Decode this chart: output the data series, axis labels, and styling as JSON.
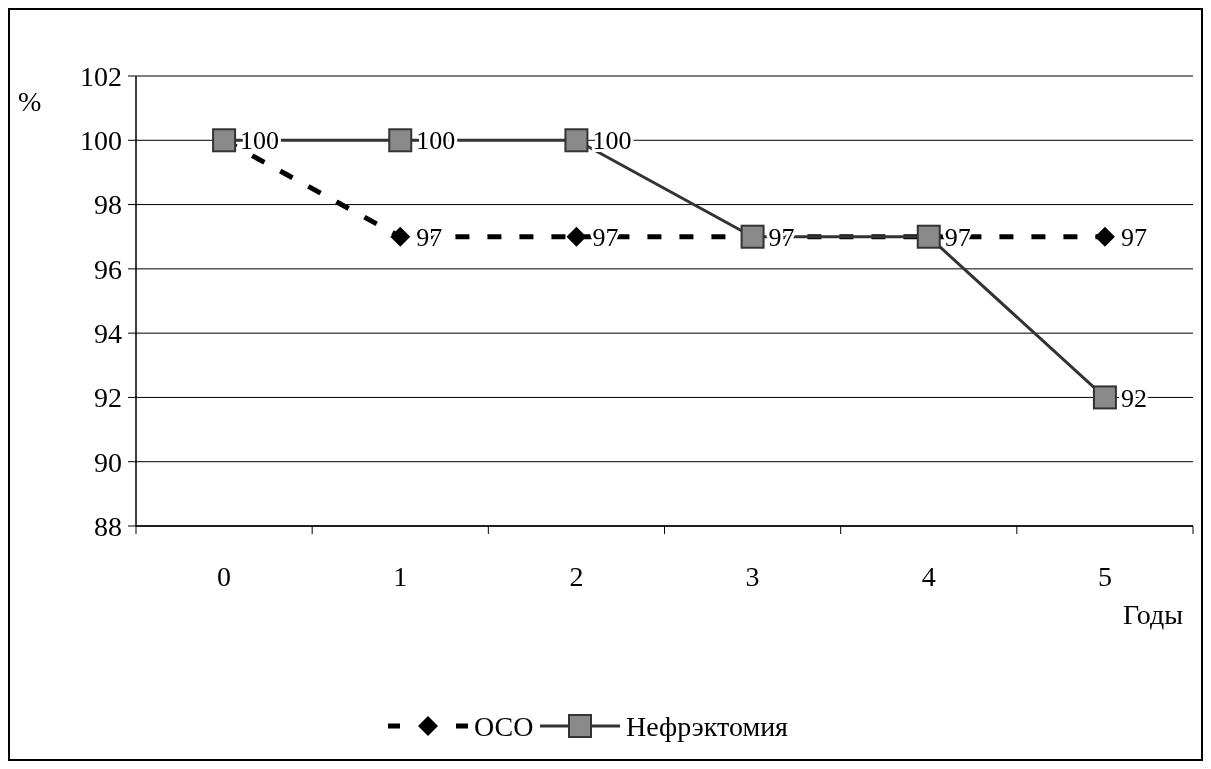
{
  "chart_data": {
    "type": "line",
    "ylabel": "%",
    "xlabel": "Годы",
    "categories": [
      "0",
      "1",
      "2",
      "3",
      "4",
      "5"
    ],
    "series": [
      {
        "name": "ОСО",
        "color": "#000000",
        "values": [
          100,
          97,
          97,
          97,
          97,
          97
        ],
        "marker": "diamond",
        "line_style": "dashed",
        "value_labels": [
          null,
          "97",
          "97",
          "97",
          "97",
          "97"
        ]
      },
      {
        "name": "Нефрэктомия",
        "color": "#333333",
        "values": [
          100,
          100,
          100,
          97,
          97,
          92
        ],
        "marker": "square",
        "line_style": "solid",
        "value_labels": [
          "100",
          "100",
          "100",
          null,
          null,
          "92"
        ]
      }
    ],
    "ylim": [
      88,
      102
    ],
    "yticks": [
      88,
      90,
      92,
      94,
      96,
      98,
      100,
      102
    ],
    "grid": "y",
    "legend": "bottom"
  }
}
